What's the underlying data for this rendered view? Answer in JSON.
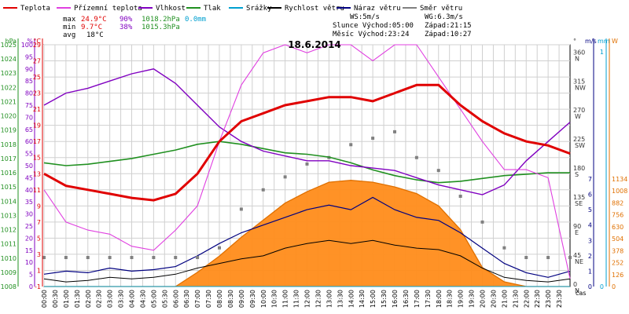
{
  "chart_data": {
    "type": "line",
    "title": "18.6.2014",
    "legend": [
      {
        "name": "Teplota",
        "color": "#e00000"
      },
      {
        "name": "Přízemní teplota",
        "color": "#e040e0"
      },
      {
        "name": "Vlhkost",
        "color": "#8000c0"
      },
      {
        "name": "Tlak",
        "color": "#209020"
      },
      {
        "name": "Srážky",
        "color": "#00a0d0"
      },
      {
        "name": "Rychlost větru",
        "color": "#000000"
      },
      {
        "name": "Náraz větru",
        "color": "#000080"
      },
      {
        "name": "Směr větru",
        "color": "#808080"
      }
    ],
    "legend_placement": "top",
    "stats": {
      "max_label": "max",
      "min_label": "min",
      "avg_label": "avg",
      "temp_max": "24.9°C",
      "hum_max": "90%",
      "press_max": "1018.2hPa",
      "rain_max": "0.0mm",
      "temp_min": "9.7°C",
      "hum_min": "38%",
      "press_min": "1015.3hPa",
      "temp_avg": "18°C",
      "ws": "WS:5m/s",
      "wg": "WG:6.3m/s",
      "sun": "Slunce Východ:05:00",
      "sun_set": "Západ:21:15",
      "moon": "Měsíc  Východ:23:24",
      "moon_set": "Západ:10:27"
    },
    "axes": {
      "hpa": {
        "label": "hPa",
        "range": [
          1008,
          1025
        ],
        "ticks": [
          "1008",
          "1009",
          "1010",
          "1011",
          "1012",
          "1013",
          "1014",
          "1015",
          "1016",
          "1017",
          "1018",
          "1019",
          "1020",
          "1021",
          "1022",
          "1023",
          "1024",
          "1025"
        ],
        "color": "#209020"
      },
      "percent": {
        "label": "%",
        "range": [
          0,
          100
        ],
        "ticks": [
          "0",
          "5",
          "10",
          "15",
          "20",
          "25",
          "30",
          "35",
          "40",
          "45",
          "50",
          "55",
          "60",
          "65",
          "70",
          "75",
          "80",
          "85",
          "90",
          "95",
          "100"
        ],
        "color": "#8000c0"
      },
      "celsius": {
        "label": "°C",
        "range": [
          -1,
          29
        ],
        "ticks": [
          "-1",
          "1",
          "3",
          "5",
          "7",
          "9",
          "11",
          "13",
          "15",
          "17",
          "19",
          "21",
          "23",
          "25",
          "27",
          "29"
        ],
        "color": "#e00000"
      },
      "direction": {
        "label": "°",
        "ticks": [
          {
            "v": "0",
            "d": "N"
          },
          {
            "v": "45",
            "d": "NE"
          },
          {
            "v": "90",
            "d": "E"
          },
          {
            "v": "135",
            "d": "SE"
          },
          {
            "v": "180",
            "d": "S"
          },
          {
            "v": "225",
            "d": "SW"
          },
          {
            "v": "270",
            "d": "W"
          },
          {
            "v": "315",
            "d": "NW"
          },
          {
            "v": "360",
            "d": "N"
          }
        ]
      },
      "wind": {
        "label": "m/s",
        "range": [
          0,
          7
        ],
        "ticks": [
          "0",
          "1",
          "2",
          "3",
          "4",
          "5",
          "6",
          "7"
        ]
      },
      "rain": {
        "label": "mm",
        "range": [
          0,
          1
        ],
        "ticks": [
          "0",
          "1"
        ],
        "color": "#00a0d0"
      },
      "solar": {
        "label": "W",
        "range": [
          0,
          1134
        ],
        "ticks": [
          "0",
          "126",
          "252",
          "378",
          "504",
          "630",
          "756",
          "882",
          "1008",
          "1134"
        ],
        "color": "#e07000"
      },
      "x": {
        "label": "čas",
        "ticks": [
          "00:00",
          "00:30",
          "01:00",
          "01:30",
          "02:00",
          "02:30",
          "03:00",
          "03:30",
          "04:00",
          "04:30",
          "05:00",
          "05:30",
          "06:00",
          "06:30",
          "07:00",
          "07:30",
          "08:00",
          "08:30",
          "09:00",
          "09:30",
          "10:00",
          "10:30",
          "11:00",
          "11:30",
          "12:00",
          "12:30",
          "13:00",
          "13:30",
          "14:00",
          "14:30",
          "15:00",
          "15:30",
          "16:00",
          "16:30",
          "17:00",
          "17:30",
          "18:00",
          "18:30",
          "19:00",
          "19:30",
          "20:00",
          "20:30",
          "21:00",
          "21:30",
          "22:00",
          "22:30",
          "23:00",
          "23:30"
        ]
      }
    },
    "hours": [
      0,
      1,
      2,
      3,
      4,
      5,
      6,
      7,
      8,
      9,
      10,
      11,
      12,
      13,
      14,
      15,
      16,
      17,
      18,
      19,
      20,
      21,
      22,
      23,
      24
    ],
    "series": [
      {
        "name": "Teplota",
        "values": [
          13,
          11.5,
          11,
          10.5,
          10,
          9.7,
          10.5,
          13,
          17,
          19.5,
          20.5,
          21.5,
          22,
          22.5,
          22.5,
          22,
          23,
          24,
          24,
          21.5,
          19.5,
          18,
          17,
          16.5,
          15.5
        ]
      },
      {
        "name": "Přízemní teplota",
        "values": [
          11,
          7,
          6,
          5.5,
          4,
          3.5,
          6,
          9,
          17,
          24,
          28,
          29,
          28,
          29,
          29,
          27,
          29,
          29,
          25,
          21,
          17,
          13.5,
          13.5,
          12.5,
          0
        ]
      },
      {
        "name": "Vlhkost",
        "values": [
          75,
          80,
          82,
          85,
          88,
          90,
          84,
          75,
          66,
          60,
          56,
          54,
          52,
          52,
          50,
          49,
          48,
          45,
          42,
          40,
          38,
          42,
          52,
          60,
          68
        ]
      },
      {
        "name": "Tlak",
        "values": [
          1016.7,
          1016.5,
          1016.6,
          1016.8,
          1017.0,
          1017.3,
          1017.6,
          1018.0,
          1018.2,
          1018.0,
          1017.7,
          1017.4,
          1017.3,
          1017.1,
          1016.7,
          1016.2,
          1015.8,
          1015.5,
          1015.3,
          1015.4,
          1015.6,
          1015.8,
          1015.9,
          1016.0,
          1016.0
        ]
      },
      {
        "name": "Rychlost větru",
        "values": [
          0.5,
          0.3,
          0.4,
          0.6,
          0.5,
          0.6,
          0.8,
          1.2,
          1.5,
          1.8,
          2.0,
          2.5,
          2.8,
          3.0,
          2.8,
          3.0,
          2.7,
          2.5,
          2.4,
          2.0,
          1.2,
          0.6,
          0.4,
          0.3,
          0.5
        ]
      },
      {
        "name": "Náraz větru",
        "values": [
          0.8,
          1.0,
          0.9,
          1.2,
          1.0,
          1.1,
          1.3,
          2.0,
          2.8,
          3.5,
          4.0,
          4.5,
          5.0,
          5.3,
          5.0,
          5.8,
          5.0,
          4.5,
          4.3,
          3.5,
          2.5,
          1.5,
          0.9,
          0.6,
          1.0
        ]
      },
      {
        "name": "Směr větru",
        "values": [
          45,
          45,
          45,
          45,
          45,
          45,
          45,
          45,
          60,
          120,
          150,
          170,
          190,
          200,
          220,
          230,
          240,
          200,
          180,
          140,
          100,
          60,
          45,
          45,
          45
        ]
      },
      {
        "name": "Sluneční záření",
        "values": [
          0,
          0,
          0,
          0,
          0,
          0,
          0,
          150,
          320,
          520,
          700,
          880,
          1000,
          1100,
          1120,
          1100,
          1050,
          980,
          850,
          600,
          200,
          50,
          0,
          0,
          0
        ]
      },
      {
        "name": "Srážky",
        "values": [
          0,
          0,
          0,
          0,
          0,
          0,
          0,
          0,
          0,
          0,
          0,
          0,
          0,
          0,
          0,
          0,
          0,
          0,
          0,
          0,
          0,
          0,
          0,
          0,
          0
        ]
      }
    ]
  }
}
